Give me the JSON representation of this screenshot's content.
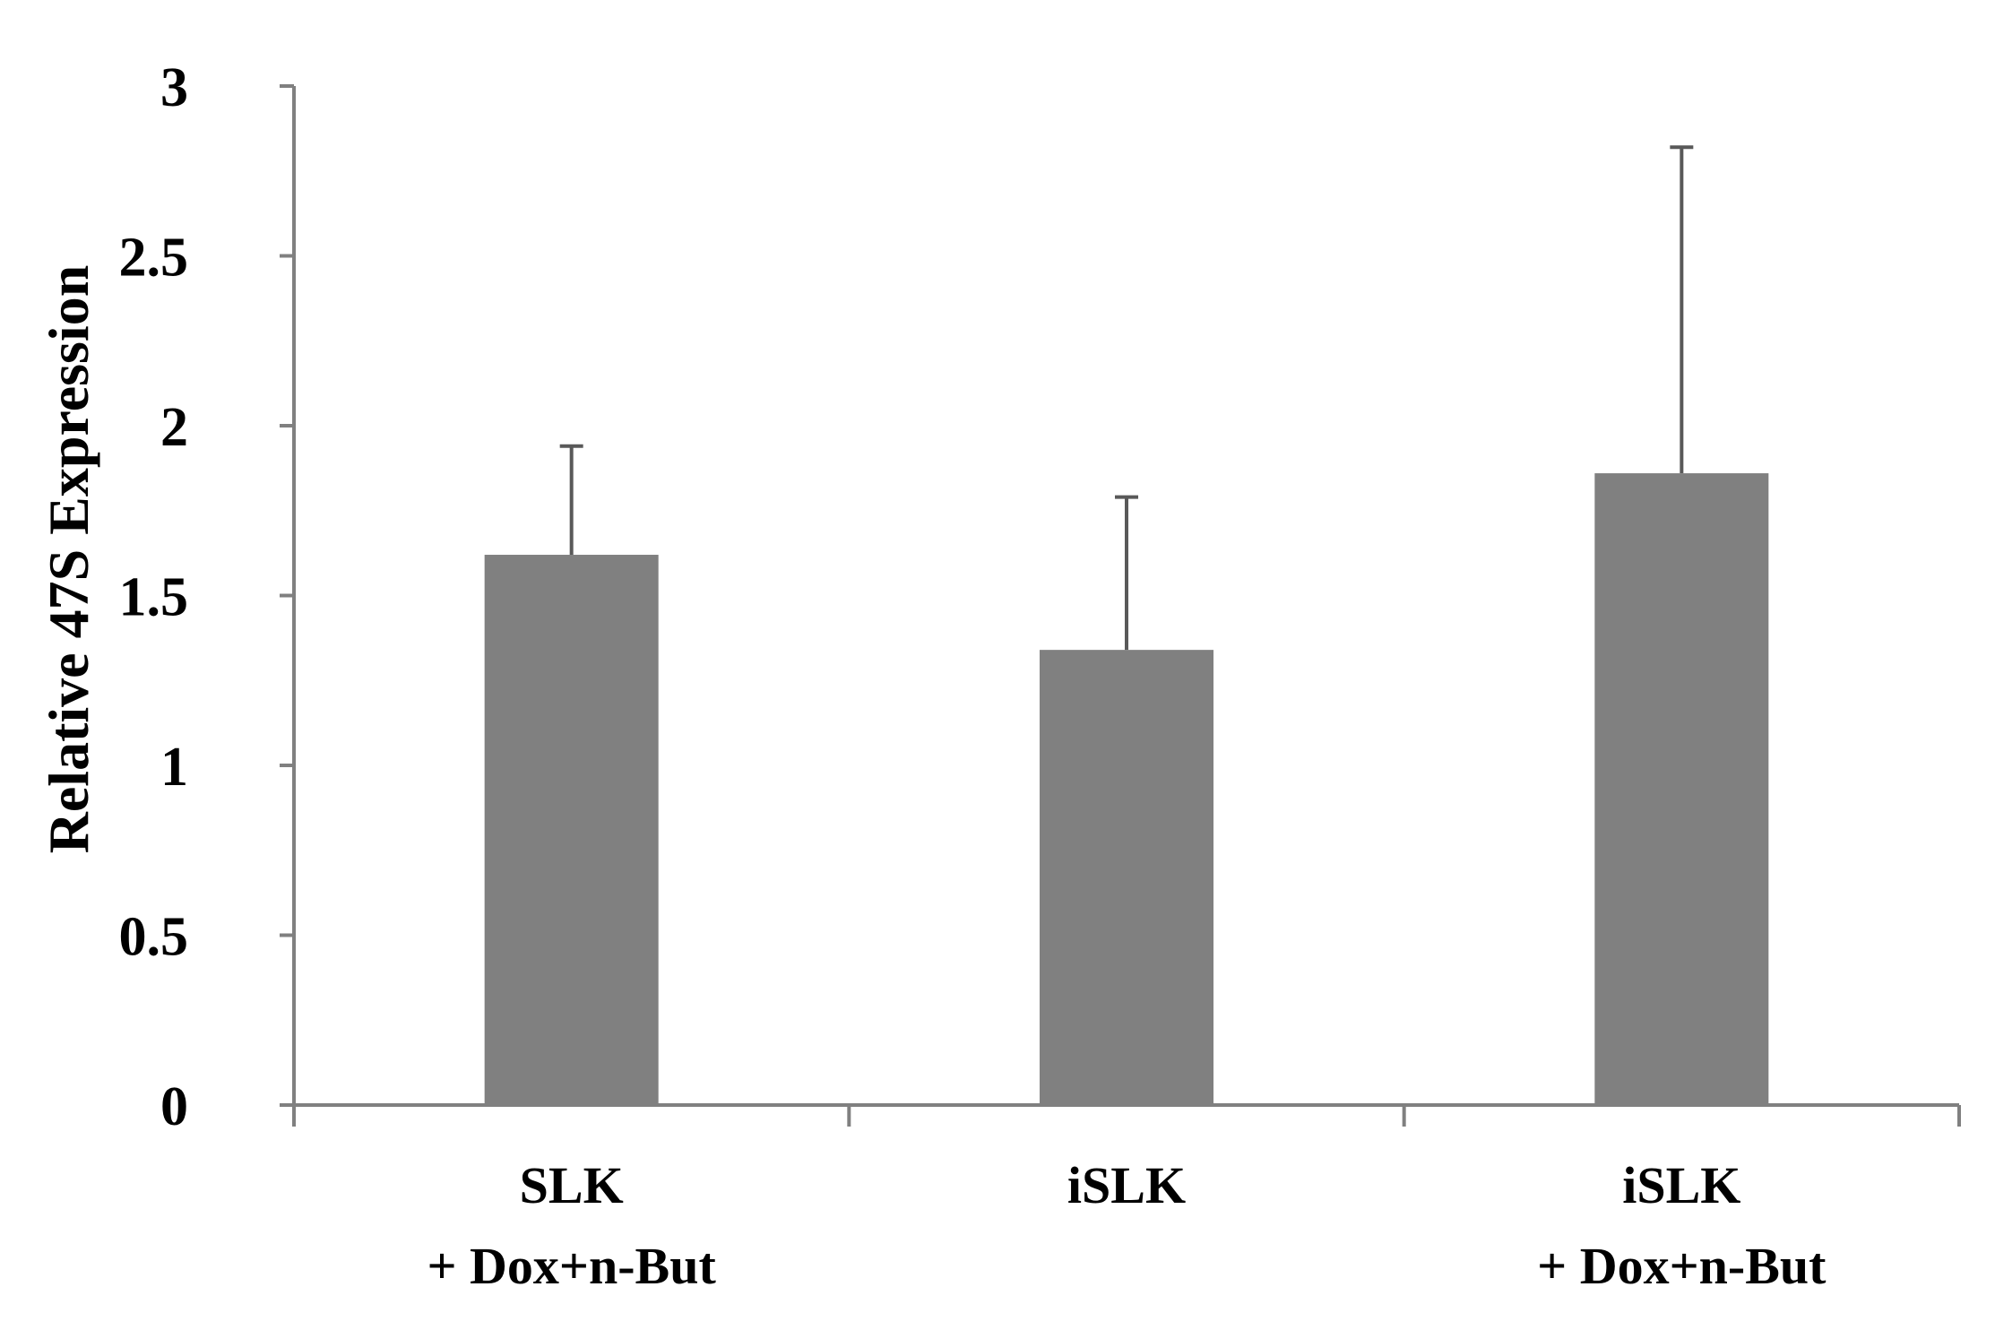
{
  "chart_data": {
    "type": "bar",
    "title": "",
    "xlabel": "",
    "ylabel": "Relative 47S Expression",
    "ylim": [
      0,
      3
    ],
    "yticks": [
      "0",
      "0.5",
      "1",
      "1.5",
      "2",
      "2.5",
      "3"
    ],
    "grid": false,
    "categories": [
      {
        "line1": "SLK",
        "line2": "+ Dox+n-But"
      },
      {
        "line1": "iSLK",
        "line2": ""
      },
      {
        "line1": "iSLK",
        "line2": "+ Dox+n-But"
      }
    ],
    "values": [
      1.62,
      1.34,
      1.86
    ],
    "errors": [
      0.32,
      0.45,
      0.96
    ],
    "colors": {
      "bar": "#808080",
      "axis": "#808080",
      "error": "#595959",
      "text": "#000000"
    }
  }
}
